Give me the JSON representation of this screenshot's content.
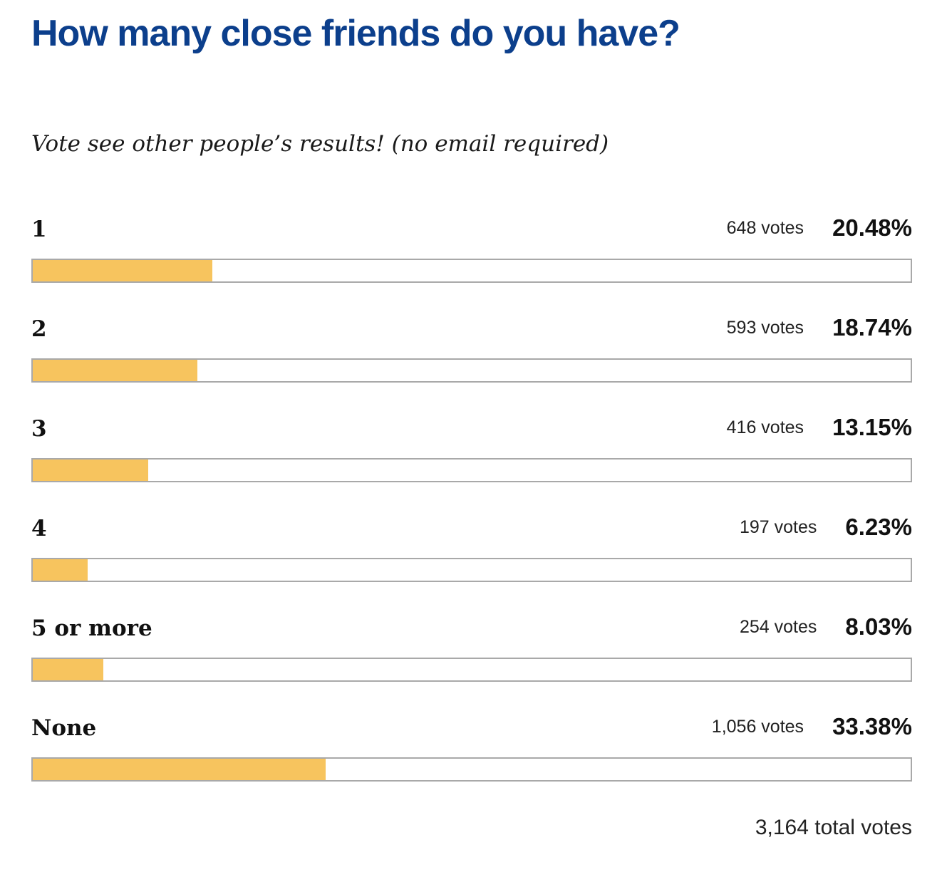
{
  "poll": {
    "title": "How many close friends do you have?",
    "subtitle": "Vote see other people’s results! (no email required)",
    "options": [
      {
        "label": "1",
        "votes": "648 votes",
        "percent": "20.48%",
        "share": 20.48
      },
      {
        "label": "2",
        "votes": "593 votes",
        "percent": "18.74%",
        "share": 18.74
      },
      {
        "label": "3",
        "votes": "416 votes",
        "percent": "13.15%",
        "share": 13.15
      },
      {
        "label": "4",
        "votes": "197 votes",
        "percent": "6.23%",
        "share": 6.23
      },
      {
        "label": "5 or more",
        "votes": "254 votes",
        "percent": "8.03%",
        "share": 8.03
      },
      {
        "label": "None",
        "votes": "1,056 votes",
        "percent": "33.38%",
        "share": 33.38
      }
    ],
    "total_votes": "3,164 total votes"
  },
  "colors": {
    "title": "#0c3f8c",
    "bar_fill": "#f7c45e",
    "bar_border": "#a9a9a9"
  }
}
